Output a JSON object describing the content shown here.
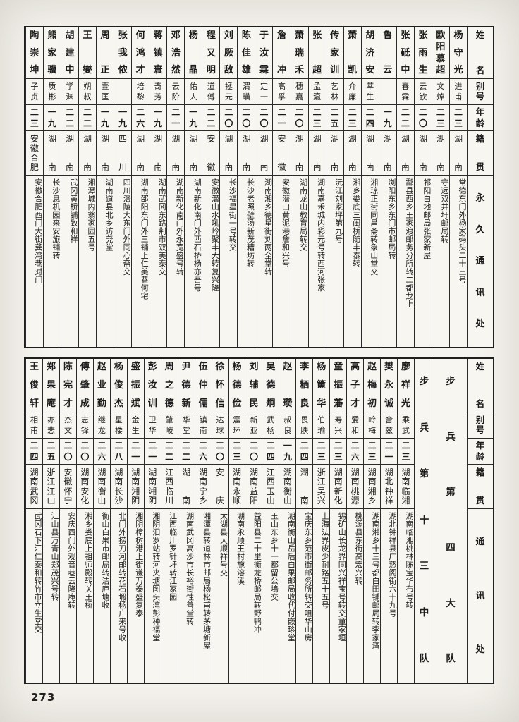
{
  "page": {
    "number": "273"
  },
  "top_table": {
    "row_headers": {
      "name": "姓名",
      "alias": "别号",
      "age": "年龄",
      "origin": "籍贯",
      "address": "永久通讯处"
    },
    "entries": [
      {
        "name": "杨守光",
        "alias": "进甫",
        "age": "二三",
        "origin": "湖南",
        "address": "常德东门外杨家码头二十三号"
      },
      {
        "name": "欧阳慕超",
        "alias": "文焯",
        "age": "二三",
        "origin": "湖南",
        "address": "守远双井圩邮局转"
      },
      {
        "name": "张雨生",
        "alias": "云钦",
        "age": "二〇",
        "origin": "湖南",
        "address": "祁阳白地邮局张家新屋"
      },
      {
        "name": "张砥中",
        "alias": "春霖",
        "age": "二二",
        "origin": "湖南",
        "address": "酃县西乡王家渡邮务分所转二都龙上"
      },
      {
        "name": "鲁云",
        "alias": "",
        "age": "一九",
        "origin": "湖南",
        "address": "浏阳东乡东门市邮局转"
      },
      {
        "name": "胡济安",
        "alias": "萃生",
        "age": "二四",
        "origin": "湖南",
        "address": "湘琼正街同昌斋转象山堂交"
      },
      {
        "name": "萧凯",
        "alias": "介廉",
        "age": "二三",
        "origin": "湖南",
        "address": "湘乡娄底三闺桥随丰泰转"
      },
      {
        "name": "传家训",
        "alias": "艺林",
        "age": "二五",
        "origin": "湖南",
        "address": "沅江刘家坪第九号"
      },
      {
        "name": "张超",
        "alias": "孟瀛",
        "age": "二三",
        "origin": "湖南",
        "address": "湖南嘉禾城内彩元号转西河张家"
      },
      {
        "name": "萧瑞禾",
        "alias": "穗嘉",
        "age": "二〇",
        "origin": "湖南",
        "address": "湖南龙山教育局转交"
      },
      {
        "name": "詹冲",
        "alias": "高孚",
        "age": "二一",
        "origin": "安徽",
        "address": "安徽潜山黄泥港詹和兴号"
      },
      {
        "name": "于汝霖",
        "alias": "定一",
        "age": "二〇",
        "origin": "湖南",
        "address": "湖南湘乡德星街刘两全堂转"
      },
      {
        "name": "陈佳雄",
        "alias": "渭璜",
        "age": "二〇",
        "origin": "湖南",
        "address": "长沙老照壁汤新茂糟坊转"
      },
      {
        "name": "刘厥敌",
        "alias": "拯元",
        "age": "二〇",
        "origin": "湖南",
        "address": "长沙福星街一号转交"
      },
      {
        "name": "程又明",
        "alias": "道傅",
        "age": "二二",
        "origin": "安徽",
        "address": "安徽潜山水吼岭聚丰大转复兴隆"
      },
      {
        "name": "杨晶",
        "alias": "佑人",
        "age": "一九",
        "origin": "湖南",
        "address": "湖南新化南门外西石桥杨亦吾号"
      },
      {
        "name": "邓浩然",
        "alias": "云阶",
        "age": "二一",
        "origin": "湖南",
        "address": "湖南新化南门外永宽盛号转"
      },
      {
        "name": "蒋镇寰",
        "alias": "奇芳",
        "age": "一九",
        "origin": "湖南",
        "address": "湖南武冈东路荆市双美泰交"
      },
      {
        "name": "何鸿才",
        "alias": "培黎",
        "age": "二六",
        "origin": "湖南",
        "address": "湖南邵阳东门外三铺上仁美巷何宅"
      },
      {
        "name": "张我侬",
        "alias": "",
        "age": "一九",
        "origin": "四川",
        "address": "四川涪陵大东门外同心斋交"
      },
      {
        "name": "周正",
        "alias": "壹匡",
        "age": "一九",
        "origin": "湖南",
        "address": "湖南道县北乡访尧堂"
      },
      {
        "name": "王燮",
        "alias": "朔叔",
        "age": "二二",
        "origin": "湖南",
        "address": "湘潭城内翁家园五号"
      },
      {
        "name": "胡建中",
        "alias": "学渊",
        "age": "二二",
        "origin": "湖南",
        "address": "武冈黄桥铺致和祥"
      },
      {
        "name": "熊家骥",
        "alias": "质彬",
        "age": "一九",
        "origin": "湖南",
        "address": "长沙息机园来安旅铺转"
      },
      {
        "name": "陶崇坤",
        "alias": "子贞",
        "age": "二三",
        "origin": "安徽合肥",
        "address": "安徽合肥西门大街龚湾巷对门"
      }
    ]
  },
  "bottom_table": {
    "row_headers": {
      "name": "姓名",
      "alias": "别号",
      "age": "年龄",
      "origin": "籍贯",
      "address": "通讯处"
    },
    "unit_columns": [
      "步兵第四大队",
      "步兵第十三中队"
    ],
    "entries": [
      {
        "name": "廖祥光",
        "alias": "乘武",
        "age": "二三",
        "origin": "湖南临湘",
        "address": "湖南临湘桃林陈宝华布号转"
      },
      {
        "name": "樊永诚",
        "alias": "舍兹",
        "age": "二一",
        "origin": "湖北钟祥",
        "address": "湖北钟祥县广慈阁街六十九号"
      },
      {
        "name": "赵梅初",
        "alias": "岭梅",
        "age": "二三",
        "origin": "湖南湘乡",
        "address": "湖南湘乡十三号都白田铺邮局转李家湾"
      },
      {
        "name": "高子才",
        "alias": "爱和",
        "age": "二六",
        "origin": "湖南桃源",
        "address": "桃源县东街高宏兴转"
      },
      {
        "name": "童振藩",
        "alias": "寿兴",
        "age": "二三",
        "origin": "湖南新化",
        "address": "锡矿山长龙界同兴祥宝号转交童家垣"
      },
      {
        "name": "杨簠华",
        "alias": "伯瑜",
        "age": "二三",
        "origin": "浙江吴兴",
        "address": "上海法界皮少耐路五十五号"
      },
      {
        "name": "李粞良",
        "alias": "畏胅",
        "age": "二四",
        "origin": "湖南",
        "address": "宝庆东乡范市街邮务所转交咀华山房"
      },
      {
        "name": "赵瓒",
        "alias": "叔良",
        "age": "一九",
        "origin": "湖南衡山",
        "address": "湖南衡山岳后白果邮局收代付嵌珍堂"
      },
      {
        "name": "吴德炯",
        "alias": "武杨",
        "age": "二四",
        "origin": "江西玉山",
        "address": "玉山东乡十一都留公塢交"
      },
      {
        "name": "刘辅民",
        "alias": "新亚",
        "age": "二〇",
        "origin": "湖南益阳",
        "address": "益阳县二十里衡龙桥邮局转野鸭冲"
      },
      {
        "name": "杨德俭",
        "alias": "震环",
        "age": "二三",
        "origin": "湖南永顺",
        "address": "湖南永顺王村施溶溪"
      },
      {
        "name": "徐怀信",
        "alias": "达球",
        "age": "二〇",
        "origin": "安庆",
        "address": "太湖县大顺祥号交"
      },
      {
        "name": "伍仲儒",
        "alias": "镇南",
        "age": "二六",
        "origin": "湖南宁乡",
        "address": "湘潭县转道林市邮局杨松甫转茅塘新屋"
      },
      {
        "name": "尹德新",
        "alias": "华堂",
        "age": "二二",
        "origin": "湖南",
        "address": "湖南武冈高沙市长裕街性善堂转"
      },
      {
        "name": "周之德",
        "alias": "肇岐",
        "age": "二二",
        "origin": "江西临川",
        "address": "江西临川罗针圩转江家园"
      },
      {
        "name": "彭汝训",
        "alias": "卫华",
        "age": "二一",
        "origin": "湖南湘阴",
        "address": "湘阴汨罗站转河夹塘图头湾彭种福堂"
      },
      {
        "name": "盛振斌",
        "alias": "金生",
        "age": "二一",
        "origin": "湖南湘阴",
        "address": "湘阴樟树港上街谦万泰盛复泰"
      },
      {
        "name": "杨俊杰",
        "alias": "星楼",
        "age": "二八",
        "origin": "湖南长沙",
        "address": "北门外捞刀河邮转花石塅杨广来号收"
      },
      {
        "name": "赵业勤",
        "alias": "继龙",
        "age": "二六",
        "origin": "湖南衡山",
        "address": "衡山白果市邮局转洁庐塘收"
      },
      {
        "name": "傅肇成",
        "alias": "志铎",
        "age": "二〇",
        "origin": "湖南安化",
        "address": "湘乡娄底上祖师殿转关王桥"
      },
      {
        "name": "陈宪才",
        "alias": "杰文",
        "age": "二〇",
        "origin": "安徽怀宁",
        "address": "安庆西门外观音巷云隆庵转"
      },
      {
        "name": "郑果庵",
        "alias": "亦悲",
        "age": "二五",
        "origin": "浙江江山",
        "address": "江山县万青山郑茂兴号转"
      },
      {
        "name": "王俊轩",
        "alias": "相甫",
        "age": "二四",
        "origin": "湖南武冈",
        "address": "武冈石下江仁泰和转竹市立生堂交"
      }
    ]
  }
}
